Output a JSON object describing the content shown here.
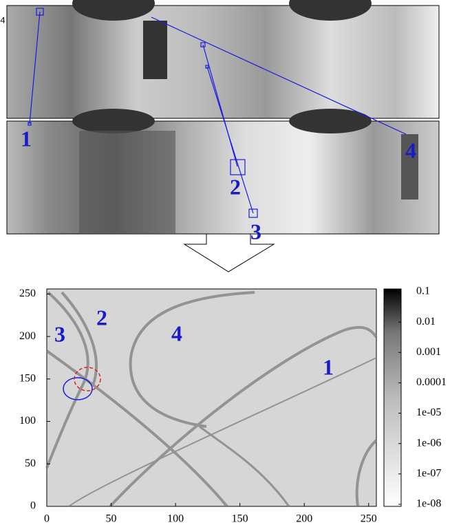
{
  "panorama": {
    "corner_label": "4",
    "labels": [
      "1",
      "2",
      "3",
      "4"
    ]
  },
  "heatmap": {
    "type": "heatmap",
    "xlim": [
      0,
      256
    ],
    "ylim": [
      0,
      256
    ],
    "xticks": [
      0,
      50,
      100,
      150,
      200,
      250
    ],
    "yticks": [
      0,
      50,
      100,
      150,
      200,
      250
    ],
    "labels": [
      "1",
      "2",
      "3",
      "4"
    ],
    "colorbar": {
      "scale": "log",
      "lim": [
        1e-08,
        0.1
      ],
      "ticks": [
        0.1,
        0.01,
        0.001,
        0.0001,
        {
          "value": 1e-05,
          "label": "1e-05"
        },
        {
          "value": 1e-06,
          "label": "1e-06"
        },
        {
          "value": 1e-07,
          "label": "1e-07"
        },
        {
          "value": 1e-08,
          "label": "1e-08"
        }
      ]
    }
  }
}
